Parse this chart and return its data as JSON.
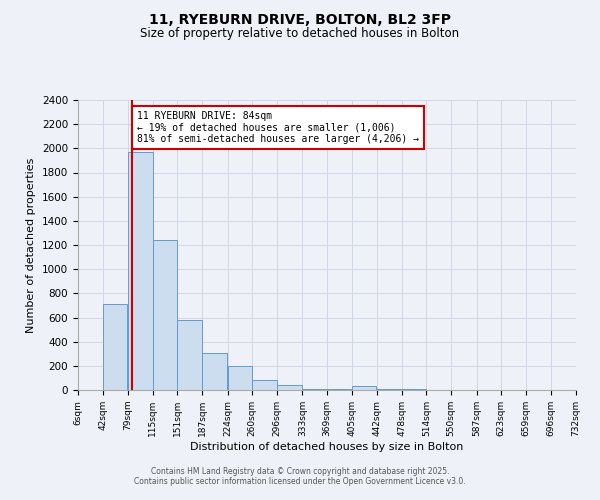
{
  "title": "11, RYEBURN DRIVE, BOLTON, BL2 3FP",
  "subtitle": "Size of property relative to detached houses in Bolton",
  "xlabel": "Distribution of detached houses by size in Bolton",
  "ylabel": "Number of detached properties",
  "bar_color": "#ccddef",
  "bar_edge_color": "#6699cc",
  "background_color": "#eef2f8",
  "grid_color": "#d0d8e8",
  "bin_edges": [
    6,
    42,
    79,
    115,
    151,
    187,
    224,
    260,
    296,
    333,
    369,
    405,
    442,
    478,
    514,
    550,
    587,
    623,
    659,
    696,
    732
  ],
  "bar_heights": [
    0,
    715,
    1970,
    1240,
    580,
    305,
    200,
    80,
    45,
    10,
    5,
    35,
    10,
    5,
    0,
    0,
    0,
    0,
    0,
    0
  ],
  "tick_labels": [
    "6sqm",
    "42sqm",
    "79sqm",
    "115sqm",
    "151sqm",
    "187sqm",
    "224sqm",
    "260sqm",
    "296sqm",
    "333sqm",
    "369sqm",
    "405sqm",
    "442sqm",
    "478sqm",
    "514sqm",
    "550sqm",
    "587sqm",
    "623sqm",
    "659sqm",
    "696sqm",
    "732sqm"
  ],
  "red_line_x": 84,
  "annotation_title": "11 RYEBURN DRIVE: 84sqm",
  "annotation_line1": "← 19% of detached houses are smaller (1,006)",
  "annotation_line2": "81% of semi-detached houses are larger (4,206) →",
  "annotation_box_color": "#ffffff",
  "annotation_box_edge": "#cc0000",
  "red_line_color": "#cc0000",
  "footer1": "Contains HM Land Registry data © Crown copyright and database right 2025.",
  "footer2": "Contains public sector information licensed under the Open Government Licence v3.0.",
  "ylim": [
    0,
    2400
  ],
  "yticks": [
    0,
    200,
    400,
    600,
    800,
    1000,
    1200,
    1400,
    1600,
    1800,
    2000,
    2200,
    2400
  ]
}
